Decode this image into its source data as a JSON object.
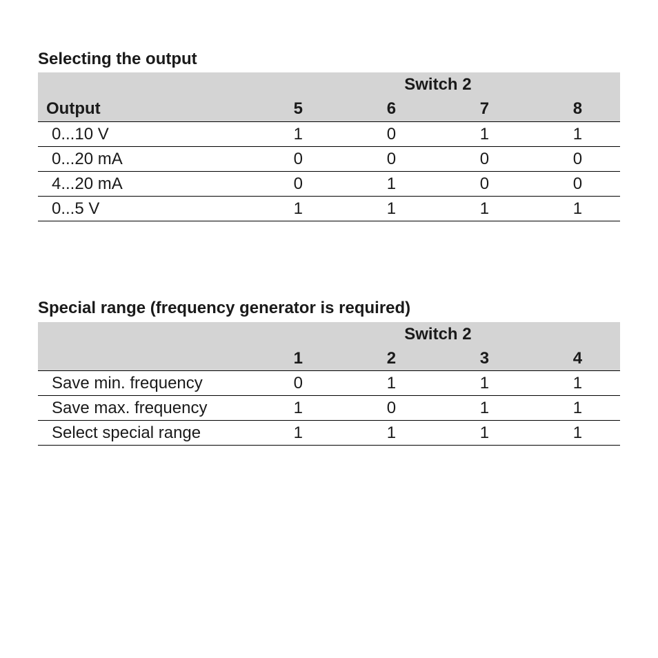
{
  "table1": {
    "title": "Selecting the output",
    "switch_label": "Switch 2",
    "row_header_label": "Output",
    "columns": [
      "5",
      "6",
      "7",
      "8"
    ],
    "rows": [
      {
        "label": "0...10 V",
        "v": [
          "1",
          "0",
          "1",
          "1"
        ]
      },
      {
        "label": "0...20 mA",
        "v": [
          "0",
          "0",
          "0",
          "0"
        ]
      },
      {
        "label": "4...20 mA",
        "v": [
          "0",
          "1",
          "0",
          "0"
        ]
      },
      {
        "label": "0...5 V",
        "v": [
          "1",
          "1",
          "1",
          "1"
        ]
      }
    ],
    "title_fontsize": 24,
    "header_bg": "#d4d4d4",
    "border_color": "#000000"
  },
  "table2": {
    "title": "Special range (frequency generator is required)",
    "switch_label": "Switch 2",
    "row_header_label": "",
    "columns": [
      "1",
      "2",
      "3",
      "4"
    ],
    "rows": [
      {
        "label": "Save min. frequency",
        "v": [
          "0",
          "1",
          "1",
          "1"
        ]
      },
      {
        "label": "Save max. frequency",
        "v": [
          "1",
          "0",
          "1",
          "1"
        ]
      },
      {
        "label": "Select special range",
        "v": [
          "1",
          "1",
          "1",
          "1"
        ]
      }
    ],
    "title_fontsize": 24,
    "header_bg": "#d4d4d4",
    "border_color": "#000000"
  }
}
